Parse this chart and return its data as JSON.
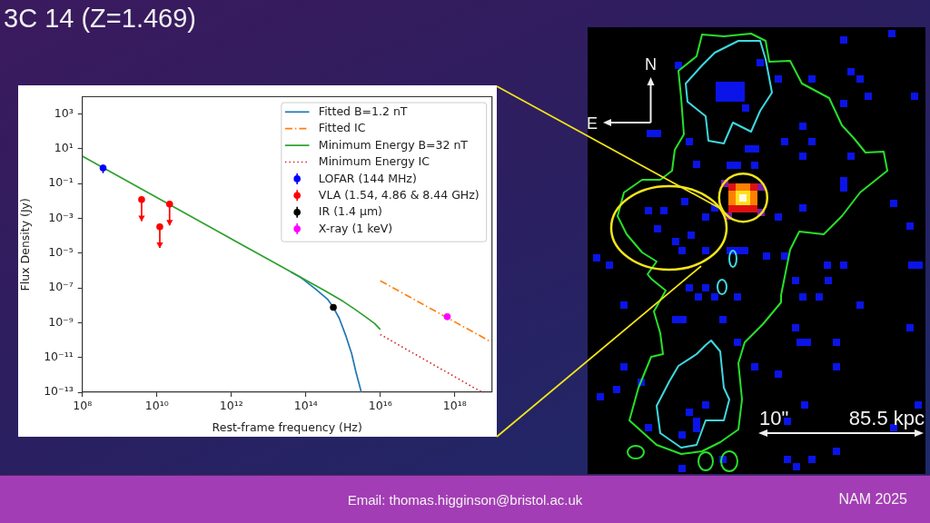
{
  "chart_data": {
    "type": "line",
    "title": "3C 14 (Z=1.469)",
    "xlabel": "Rest-frame frequency (Hz)",
    "ylabel": "Flux Density (Jy)",
    "log": "xy",
    "xlim": [
      100000000.0,
      1e+19
    ],
    "ylim": [
      1e-13,
      10000.0
    ],
    "xticks": [
      {
        "value": 100000000.0,
        "label": "10⁸"
      },
      {
        "value": 10000000000.0,
        "label": "10¹⁰"
      },
      {
        "value": 1000000000000.0,
        "label": "10¹²"
      },
      {
        "value": 100000000000000.0,
        "label": "10¹⁴"
      },
      {
        "value": 1e+16,
        "label": "10¹⁶"
      },
      {
        "value": 1e+18,
        "label": "10¹⁸"
      }
    ],
    "yticks": [
      {
        "value": 1e-13,
        "label": "10⁻¹³"
      },
      {
        "value": 1e-11,
        "label": "10⁻¹¹"
      },
      {
        "value": 1e-09,
        "label": "10⁻⁹"
      },
      {
        "value": 1e-07,
        "label": "10⁻⁷"
      },
      {
        "value": 1e-05,
        "label": "10⁻⁵"
      },
      {
        "value": 0.001,
        "label": "10⁻³"
      },
      {
        "value": 0.1,
        "label": "10⁻¹"
      },
      {
        "value": 10,
        "label": "10¹"
      },
      {
        "value": 1000,
        "label": "10³"
      }
    ],
    "legend": "top right",
    "series": [
      {
        "name": "Fitted B=1.2 nT",
        "type": "line",
        "color": "#1f77b4",
        "line_style": "solid",
        "x": [
          40000000000000.0,
          71000000000000.0,
          180000000000000.0,
          380000000000000.0,
          550000000000000.0,
          790000000000000.0,
          1200000000000000.0,
          1700000000000000.0,
          2200000000000000.0,
          3100000000000000.0
        ],
        "values": [
          8.3e-07,
          4.2e-07,
          8.9e-08,
          2.3e-08,
          7.6e-09,
          1.8e-09,
          1.7e-10,
          1.7e-11,
          1.6e-12,
          1e-13
        ]
      },
      {
        "name": "Fitted IC",
        "type": "line",
        "color": "#ff7f0e",
        "line_style": "dashdot",
        "x": [
          1e+16,
          8.7e+18
        ],
        "values": [
          2.6e-07,
          8.7e-11
        ]
      },
      {
        "name": "Minimum Energy B=32 nT",
        "type": "line",
        "color": "#2ca02c",
        "line_style": "solid",
        "x": [
          100000000.0,
          10000000000000.0,
          100000000000000.0,
          320000000000000.0,
          1000000000000000.0,
          2000000000000000.0,
          4000000000000000.0,
          7100000000000000.0,
          1e+16
        ],
        "values": [
          3.8,
          4.3e-06,
          2.8e-07,
          7.1e-08,
          1.7e-08,
          6.3e-09,
          2.2e-09,
          8.9e-10,
          4.1e-10
        ]
      },
      {
        "name": "Minimum Energy IC",
        "type": "line",
        "color": "#d62728",
        "line_style": "dotted",
        "x": [
          1e+16,
          5.4e+18
        ],
        "values": [
          2.1e-10,
          1e-13
        ]
      },
      {
        "name": "LOFAR (144 MHz)",
        "type": "scatter",
        "color": "#0000ff",
        "marker": "circle",
        "x": [
          360000000.0
        ],
        "values": [
          0.8
        ],
        "errors": [
          [
            0.4,
            1.2
          ]
        ]
      },
      {
        "name": "VLA (1.54, 4.86 & 8.44 GHz)",
        "type": "scatter",
        "color": "#ff0000",
        "marker": "circle",
        "x": [
          3900000000.0,
          12000000000.0,
          22000000000.0
        ],
        "values": [
          0.012,
          0.00033,
          0.0066
        ],
        "errors": [
          [
            0.0007,
            0.012
          ],
          [
            2e-05,
            0.00033
          ],
          [
            0.0004,
            0.0066
          ]
        ]
      },
      {
        "name": "IR (1.4 μm)",
        "type": "scatter",
        "color": "#000000",
        "marker": "circle",
        "x": [
          550000000000000.0
        ],
        "values": [
          7.6e-09
        ]
      },
      {
        "name": "X-ray (1 keV)",
        "type": "scatter",
        "color": "#ff00ff",
        "marker": "circle",
        "x": [
          6.3e+17
        ],
        "values": [
          2.2e-09
        ]
      }
    ],
    "annotations": [
      "N",
      "E",
      "10\"",
      "85.5 kpc",
      "Email: thomas.higginson@bristol.ac.uk",
      "NAM 2025"
    ]
  }
}
